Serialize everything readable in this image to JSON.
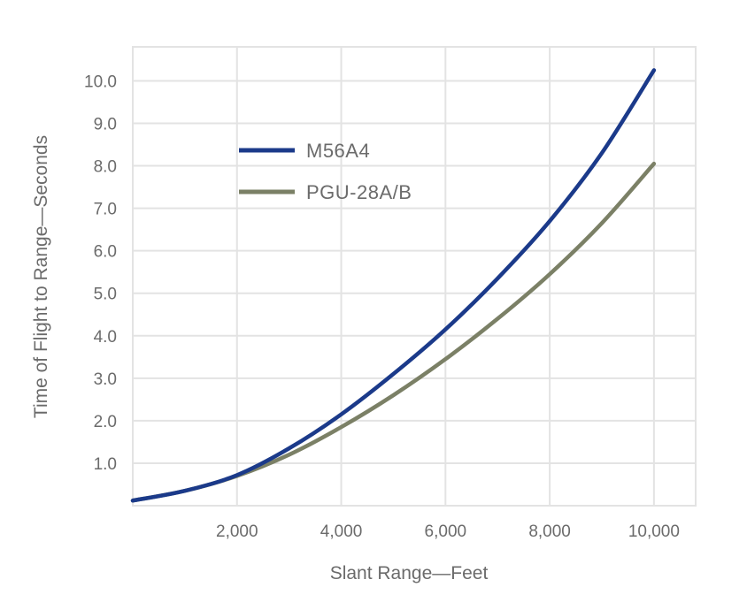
{
  "chart_data": {
    "type": "line",
    "title": "",
    "xlabel": "Slant Range—Feet",
    "ylabel": "Time of Flight to Range—Seconds",
    "xlim": [
      0,
      10800
    ],
    "ylim": [
      0,
      10.8
    ],
    "xticks": [
      2000,
      4000,
      6000,
      8000,
      10000
    ],
    "xtick_labels": [
      "2,000",
      "4,000",
      "6,000",
      "8,000",
      "10,000"
    ],
    "yticks": [
      1,
      2,
      3,
      4,
      5,
      6,
      7,
      8,
      9,
      10
    ],
    "ytick_labels": [
      "1.0",
      "2.0",
      "3.0",
      "4.0",
      "5.0",
      "6.0",
      "7.0",
      "8.0",
      "9.0",
      "10.0"
    ],
    "grid": true,
    "legend_position": "top-left",
    "series": [
      {
        "name": "M56A4",
        "color": "#1b3a8a",
        "x": [
          0,
          1000,
          2000,
          3000,
          4000,
          5000,
          6000,
          7000,
          8000,
          9000,
          10000
        ],
        "y": [
          0.12,
          0.35,
          0.72,
          1.35,
          2.15,
          3.1,
          4.15,
          5.35,
          6.7,
          8.3,
          10.25
        ]
      },
      {
        "name": "PGU-28A/B",
        "color": "#7b8066",
        "x": [
          0,
          1000,
          2000,
          3000,
          4000,
          5000,
          6000,
          7000,
          8000,
          9000,
          10000
        ],
        "y": [
          0.12,
          0.35,
          0.7,
          1.2,
          1.85,
          2.6,
          3.45,
          4.4,
          5.45,
          6.65,
          8.05
        ]
      }
    ]
  }
}
